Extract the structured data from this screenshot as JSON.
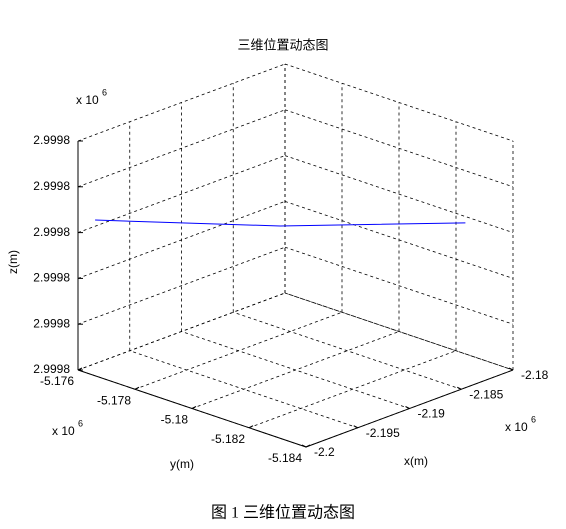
{
  "chart_data": {
    "type": "line3d",
    "title": "三维位置动态图",
    "x_label": "x(m)",
    "y_label": "y(m)",
    "z_label": "z(m)",
    "x_scale": {
      "base": "x 10",
      "exp": "6"
    },
    "y_scale": {
      "base": "x 10",
      "exp": "6"
    },
    "z_scale": {
      "base": "x 10",
      "exp": "6"
    },
    "xlim": [
      -2.2,
      -2.18
    ],
    "xticks": [
      -2.2,
      -2.195,
      -2.19,
      -2.185,
      -2.18
    ],
    "ylim": [
      -5.184,
      -5.176
    ],
    "yticks": [
      -5.176,
      -5.178,
      -5.18,
      -5.182,
      -5.184
    ],
    "zlim": [
      2.999775,
      2.9998
    ],
    "zticks": [
      {
        "value": 2.999775,
        "label": "2.9998"
      },
      {
        "value": 2.99978,
        "label": "2.9998"
      },
      {
        "value": 2.999785,
        "label": "2.9998"
      },
      {
        "value": 2.99979,
        "label": "2.9998"
      },
      {
        "value": 2.999795,
        "label": "2.9998"
      },
      2.9998
    ],
    "grid": true,
    "color": "#0000ff",
    "x": [
      -2.2,
      -2.1923,
      -2.1846
    ],
    "y": [
      -5.1766,
      -5.1803,
      -5.184
    ],
    "z": [
      2.999792,
      2.999792,
      2.999793
    ]
  },
  "caption": "图 1  三维位置动态图"
}
